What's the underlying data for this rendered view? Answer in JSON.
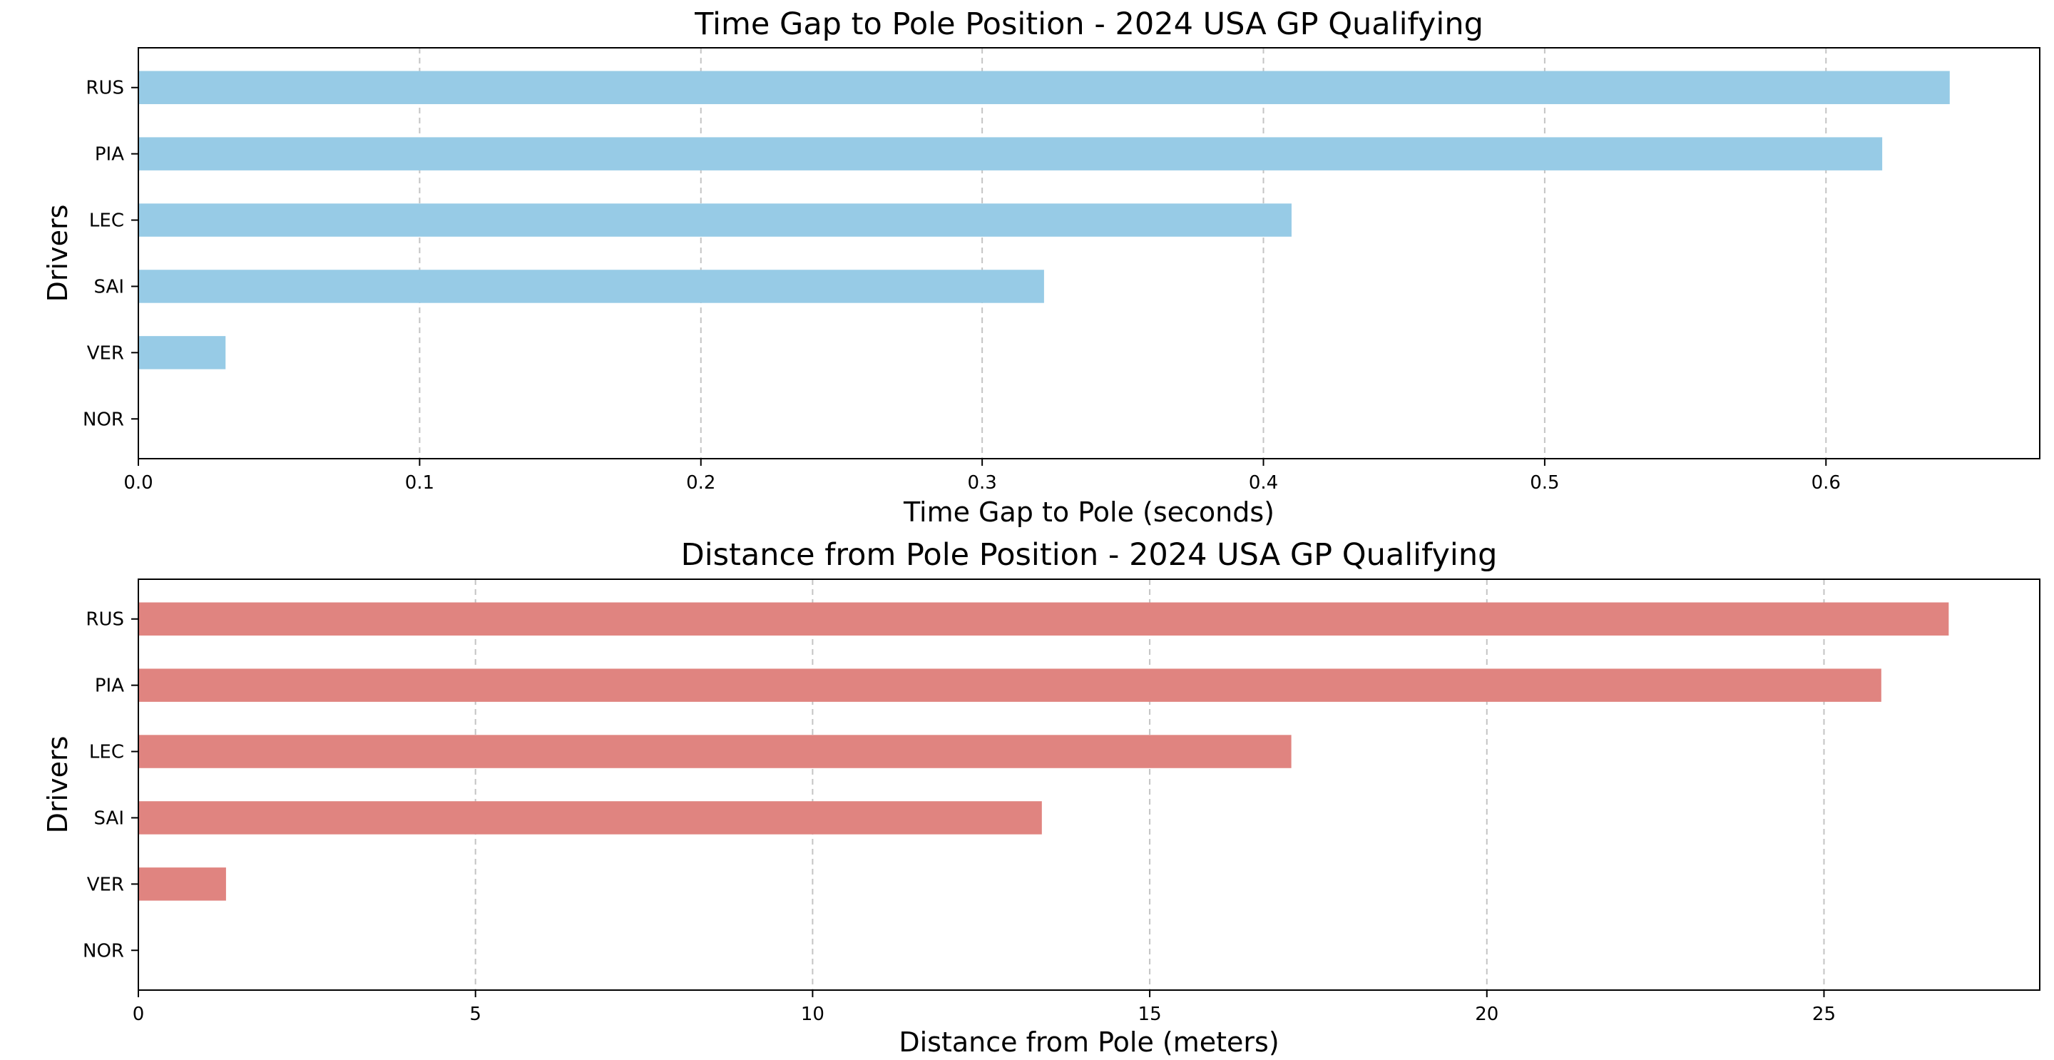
{
  "chart_data": [
    {
      "type": "bar",
      "orientation": "horizontal",
      "title": "Time Gap to Pole Position - 2024 USA GP Qualifying",
      "xlabel": "Time Gap to Pole (seconds)",
      "ylabel": "Drivers",
      "categories": [
        "NOR",
        "VER",
        "SAI",
        "LEC",
        "PIA",
        "RUS"
      ],
      "values": [
        0.0,
        0.031,
        0.322,
        0.41,
        0.62,
        0.644
      ],
      "xlim": [
        0,
        0.676
      ],
      "xticks": [
        0.0,
        0.1,
        0.2,
        0.3,
        0.4,
        0.5,
        0.6
      ],
      "xtick_labels": [
        "0.0",
        "0.1",
        "0.2",
        "0.3",
        "0.4",
        "0.5",
        "0.6"
      ],
      "bar_color": "#97cbe6",
      "grid": "x, dashed",
      "legend": "none"
    },
    {
      "type": "bar",
      "orientation": "horizontal",
      "title": "Distance from Pole Position - 2024 USA GP Qualifying",
      "xlabel": "Distance from Pole (meters)",
      "ylabel": "Drivers",
      "categories": [
        "NOR",
        "VER",
        "SAI",
        "LEC",
        "PIA",
        "RUS"
      ],
      "values": [
        0.0,
        1.3,
        13.4,
        17.1,
        25.85,
        26.85
      ],
      "xlim": [
        0,
        28.2
      ],
      "xticks": [
        0,
        5,
        10,
        15,
        20,
        25
      ],
      "xtick_labels": [
        "0",
        "5",
        "10",
        "15",
        "20",
        "25"
      ],
      "bar_color": "#e08480",
      "grid": "x, dashed",
      "legend": "none"
    }
  ]
}
